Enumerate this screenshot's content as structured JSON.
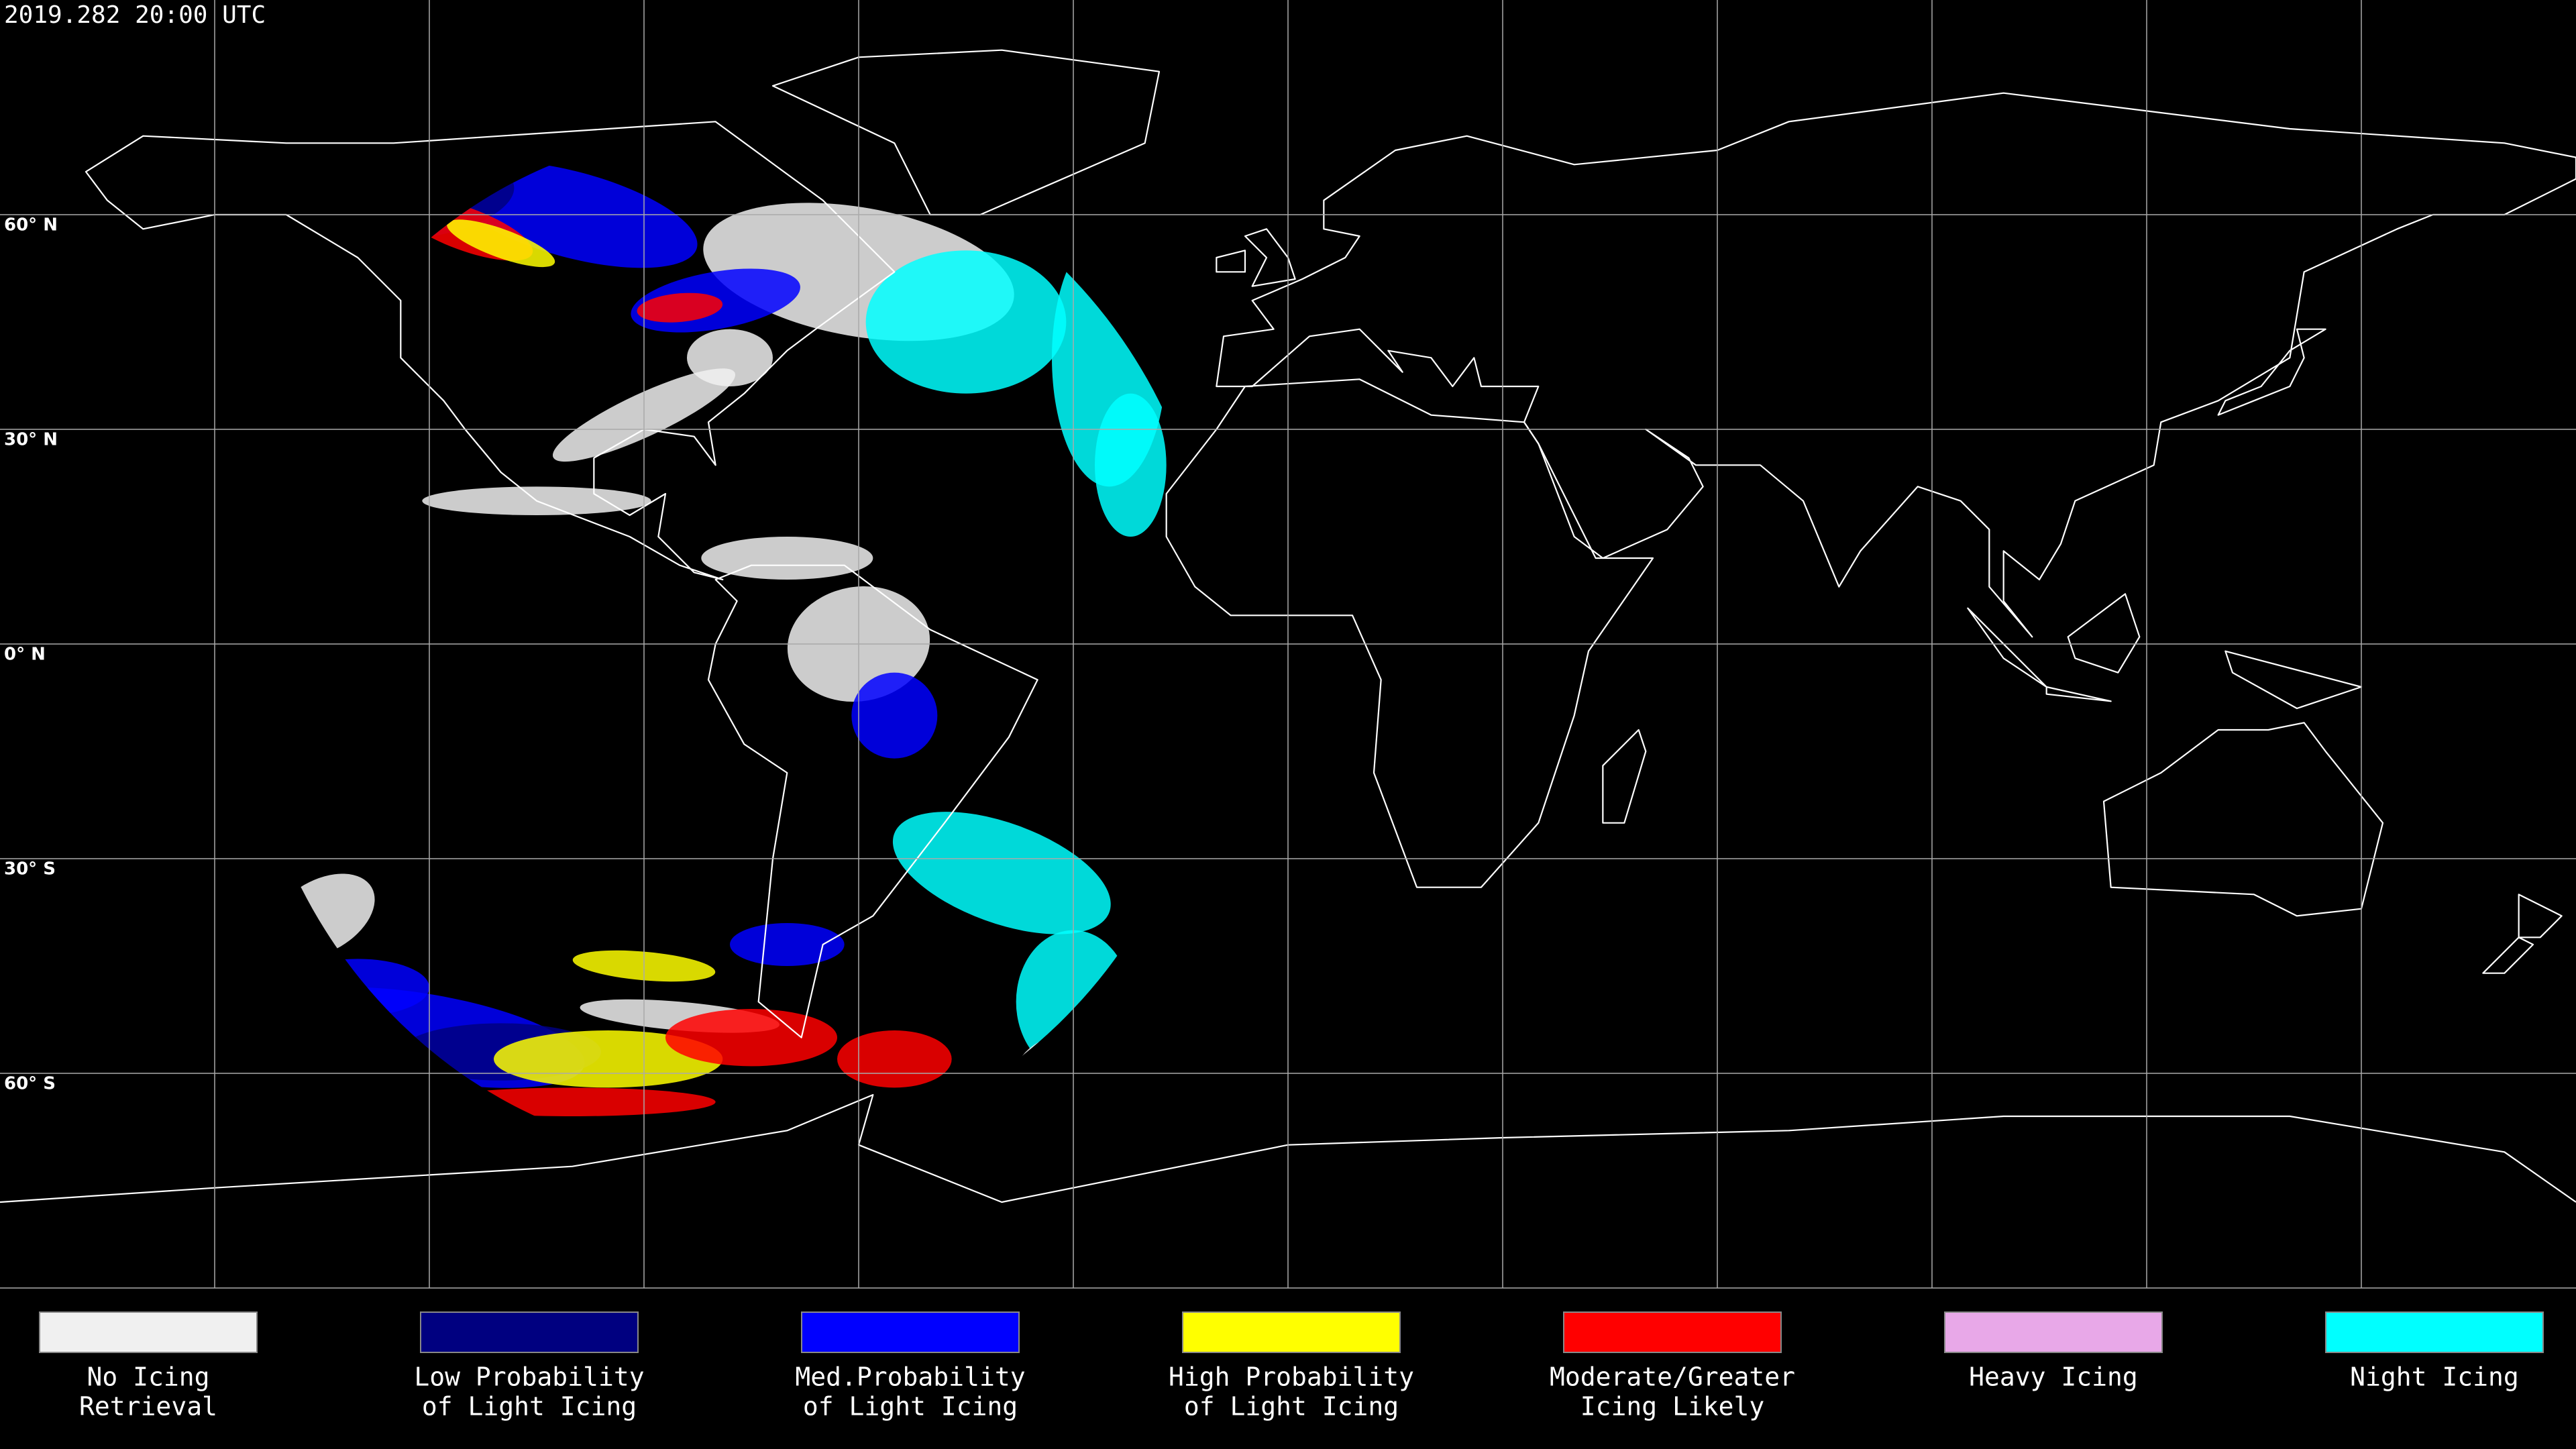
{
  "header": {
    "timestamp": "2019.282 20:00 UTC"
  },
  "latitude_labels": [
    "60° N",
    "30° N",
    "0° N",
    "30° S",
    "60° S"
  ],
  "legend": [
    {
      "lines": [
        "No Icing",
        "Retrieval"
      ],
      "color": "#f0f0f0"
    },
    {
      "lines": [
        "Low Probability",
        "of Light Icing"
      ],
      "color": "#000080"
    },
    {
      "lines": [
        "Med.Probability",
        "of Light Icing"
      ],
      "color": "#0000ff"
    },
    {
      "lines": [
        "High Probability",
        "of Light Icing"
      ],
      "color": "#ffff00"
    },
    {
      "lines": [
        "Moderate/Greater",
        "Icing Likely"
      ],
      "color": "#ff0000"
    },
    {
      "lines": [
        "Heavy Icing"
      ],
      "color": "#e8a8e8"
    },
    {
      "lines": [
        "Night Icing"
      ],
      "color": "#00ffff"
    }
  ]
}
